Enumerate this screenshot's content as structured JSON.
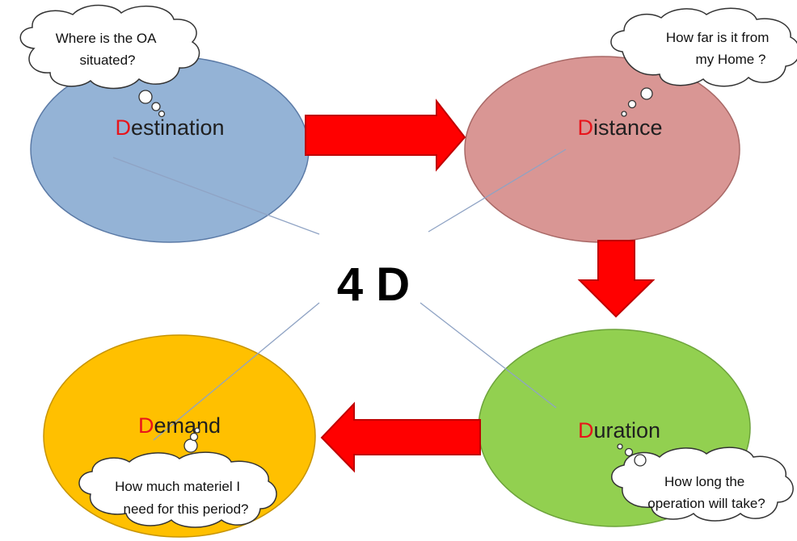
{
  "center": {
    "text": "4 D"
  },
  "colors": {
    "initial": "#e8141b",
    "arrow": "#ff0000",
    "arrow_stroke": "#c00000",
    "connector": "#8fa3c4",
    "destination": "#94b3d6",
    "distance": "#d99694",
    "duration": "#92d050",
    "demand": "#ffc000"
  },
  "nodes": {
    "destination": {
      "initial": "D",
      "rest": "estination",
      "bubble": [
        "Where is the OA",
        "situated?"
      ]
    },
    "distance": {
      "initial": "D",
      "rest": "istance",
      "bubble": [
        "How far is it from",
        "my Home ?"
      ]
    },
    "duration": {
      "initial": "D",
      "rest": "uration",
      "bubble": [
        "How long the",
        "operation will take?"
      ]
    },
    "demand": {
      "initial": "D",
      "rest": "emand",
      "bubble": [
        "How much materiel I",
        "need for this period?"
      ]
    }
  }
}
